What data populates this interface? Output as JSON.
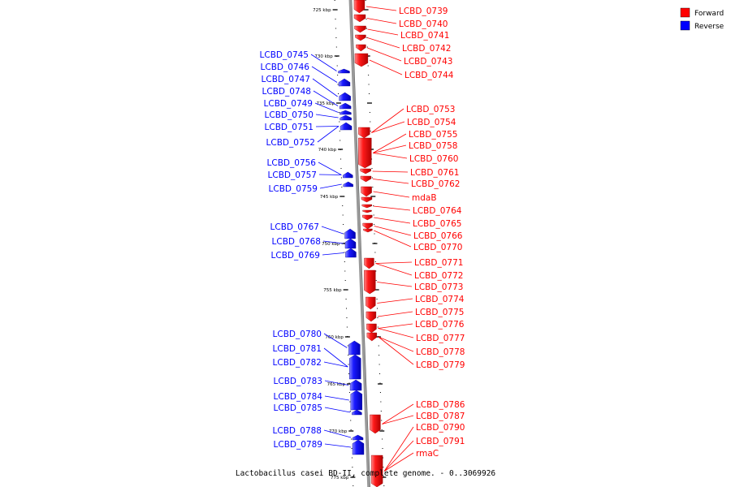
{
  "caption": "Lactobacillus casei BD-II, complete genome. - 0..3069926",
  "legend": [
    {
      "label": "Forward",
      "color": "#ff0000"
    },
    {
      "label": "Reverse",
      "color": "#0000ff"
    }
  ],
  "colors": {
    "forward": "#ff0000",
    "reverse": "#0000ff",
    "backbone": "#999999",
    "ticks": "#000000"
  },
  "ticks": [
    "725 kbp",
    "730 kbp",
    "735 kbp",
    "740 kbp",
    "745 kbp",
    "750 kbp",
    "755 kbp",
    "760 kbp",
    "765 kbp",
    "770 kbp",
    "775 kbp"
  ],
  "forward_genes": [
    "LCBD_0739",
    "LCBD_0740",
    "LCBD_0741",
    "LCBD_0742",
    "LCBD_0743",
    "LCBD_0744",
    "LCBD_0753",
    "LCBD_0754",
    "LCBD_0755",
    "LCBD_0758",
    "LCBD_0760",
    "LCBD_0761",
    "LCBD_0762",
    "mdaB",
    "LCBD_0764",
    "LCBD_0765",
    "LCBD_0766",
    "LCBD_0770",
    "LCBD_0771",
    "LCBD_0772",
    "LCBD_0773",
    "LCBD_0774",
    "LCBD_0775",
    "LCBD_0776",
    "LCBD_0777",
    "LCBD_0778",
    "LCBD_0779",
    "LCBD_0786",
    "LCBD_0787",
    "LCBD_0790",
    "LCBD_0791",
    "rmaC"
  ],
  "reverse_genes": [
    "LCBD_0745",
    "LCBD_0746",
    "LCBD_0747",
    "LCBD_0748",
    "LCBD_0749",
    "LCBD_0750",
    "LCBD_0751",
    "LCBD_0752",
    "LCBD_0756",
    "LCBD_0757",
    "LCBD_0759",
    "LCBD_0767",
    "LCBD_0768",
    "LCBD_0769",
    "LCBD_0780",
    "LCBD_0781",
    "LCBD_0782",
    "LCBD_0783",
    "LCBD_0784",
    "LCBD_0785",
    "LCBD_0788",
    "LCBD_0789"
  ]
}
